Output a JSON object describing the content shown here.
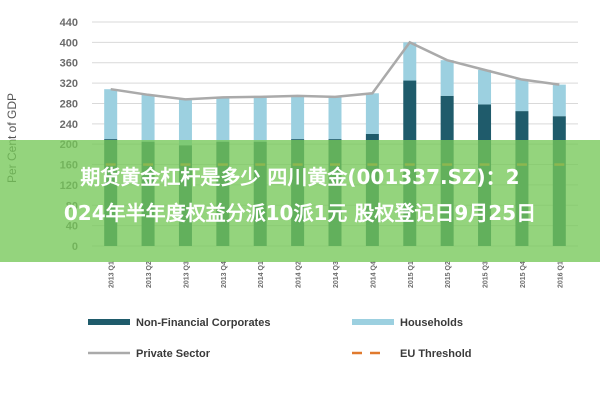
{
  "chart_data": {
    "type": "bar",
    "ylabel": "Per Cent of GDP",
    "ylim": [
      0,
      440
    ],
    "yticks": [
      0,
      40,
      80,
      120,
      160,
      200,
      240,
      280,
      320,
      360,
      400,
      440
    ],
    "categories": [
      "2013 Q1",
      "2013 Q2",
      "2013 Q3",
      "2013 Q4",
      "2014 Q1",
      "2014 Q2",
      "2014 Q3",
      "2014 Q4",
      "2015 Q1",
      "2015 Q2",
      "2015 Q3",
      "2015 Q4",
      "2016 Q1"
    ],
    "series": [
      {
        "name": "Non-Financial Corporates",
        "kind": "stacked-bar",
        "color": "#1f5b6b",
        "values": [
          210,
          205,
          198,
          205,
          205,
          210,
          210,
          220,
          325,
          295,
          278,
          265,
          255
        ]
      },
      {
        "name": "Households",
        "kind": "stacked-bar",
        "color": "#9cd0e0",
        "values": [
          98,
          92,
          90,
          87,
          88,
          85,
          83,
          80,
          75,
          70,
          68,
          62,
          62
        ]
      },
      {
        "name": "Private Sector",
        "kind": "line",
        "color": "#aaaaaa",
        "values": [
          308,
          297,
          288,
          292,
          293,
          295,
          293,
          300,
          400,
          365,
          346,
          327,
          317
        ]
      },
      {
        "name": "EU Threshold",
        "kind": "dashed-line",
        "color": "#e07a2e",
        "values": [
          160,
          160,
          160,
          160,
          160,
          160,
          160,
          160,
          160,
          160,
          160,
          160,
          160
        ]
      }
    ],
    "legend_placement": "bottom",
    "grid": true
  },
  "overlay": {
    "line1": "期货黄金杠杆是多少 四川黄金(001337.SZ)：2",
    "line2": "024年半年度权益分派10派1元 股权登记日9月25日"
  },
  "colors": {
    "banner": "#76c858",
    "grid": "#d9d9d9",
    "axis_text": "#6b6b6b"
  }
}
